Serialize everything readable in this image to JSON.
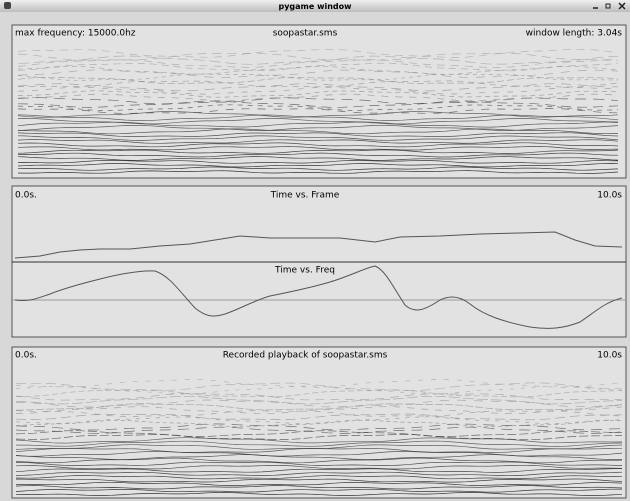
{
  "window": {
    "title": "pygame window"
  },
  "analysis": {
    "max_frequency": "max frequency: 15000.0hz",
    "file": "soopastar.sms",
    "window_length": "window length: 3.04s"
  },
  "plots": {
    "start": "0.0s.",
    "frame_title": "Time vs. Frame",
    "end": "10.0s",
    "freq_title": "Time vs. Freq"
  },
  "playback": {
    "start": "0.0s.",
    "title": "Recorded playback of soopastar.sms",
    "end": "10.0s"
  }
}
